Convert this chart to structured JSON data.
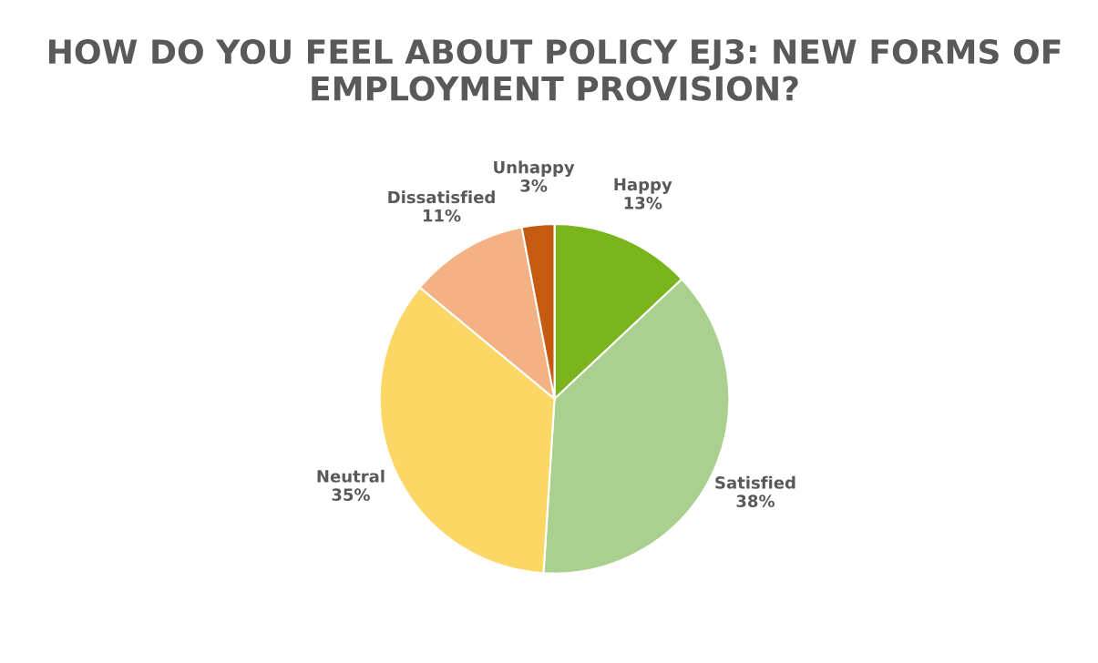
{
  "chart_data": {
    "type": "pie",
    "title": "HOW DO YOU FEEL ABOUT POLICY EJ3: NEW FORMS OF EMPLOYMENT PROVISION?",
    "categories": [
      "Happy",
      "Satisfied",
      "Neutral",
      "Dissatisfied",
      "Unhappy"
    ],
    "values": [
      13,
      38,
      35,
      11,
      3
    ],
    "value_labels": [
      "13%",
      "38%",
      "35%",
      "11%",
      "3%"
    ],
    "colors": [
      "#7ab51d",
      "#a9d08e",
      "#fcd766",
      "#f4b183",
      "#c55a11"
    ],
    "legend": false
  }
}
